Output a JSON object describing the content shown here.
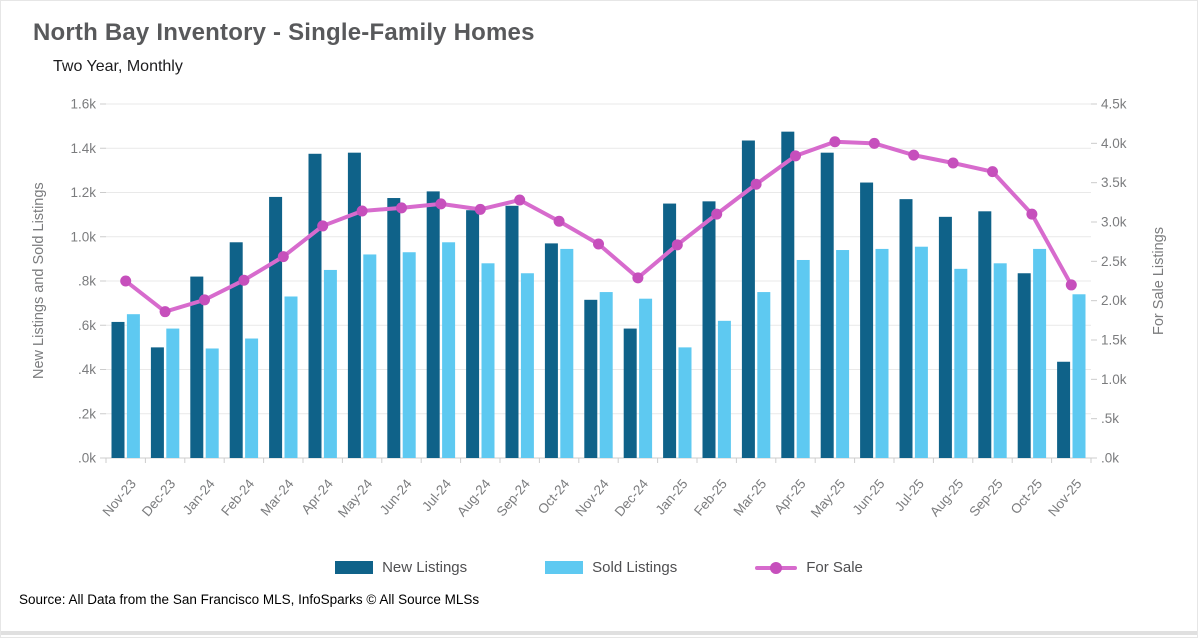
{
  "header": {
    "title": "North Bay Inventory - Single-Family Homes",
    "subtitle": "Two Year, Monthly"
  },
  "footer": {
    "source": "Source: All Data from the San Francisco MLS, InfoSparks © All Source MLSs"
  },
  "legend": {
    "items": [
      {
        "label": "New Listings"
      },
      {
        "label": "Sold Listings"
      },
      {
        "label": "For Sale"
      }
    ]
  },
  "colors": {
    "new_listings": "#0f6289",
    "sold_listings": "#5ec9f1",
    "for_sale_line": "#d76bcd",
    "for_sale_marker": "#c64fbc",
    "grid": "#e9e9e9",
    "axis_line": "#cccccc",
    "axis_text": "#7b7c7e"
  },
  "chart_data": {
    "type": "bar",
    "subtype": "grouped-bars-with-line-overlay",
    "title": "North Bay Inventory - Single-Family Homes",
    "subtitle": "Two Year, Monthly",
    "grid": true,
    "legend_position": "bottom",
    "categories": [
      "Nov-23",
      "Dec-23",
      "Jan-24",
      "Feb-24",
      "Mar-24",
      "Apr-24",
      "May-24",
      "Jun-24",
      "Jul-24",
      "Aug-24",
      "Sep-24",
      "Oct-24",
      "Nov-24",
      "Dec-24",
      "Jan-25",
      "Feb-25",
      "Mar-25",
      "Apr-25",
      "May-25",
      "Jun-25",
      "Jul-25",
      "Aug-25",
      "Sep-25",
      "Oct-25",
      "Nov-25"
    ],
    "series": [
      {
        "name": "New Listings",
        "kind": "bar",
        "axis": "left",
        "color_key": "new_listings",
        "values": [
          615,
          500,
          820,
          975,
          1180,
          1375,
          1380,
          1175,
          1205,
          1120,
          1140,
          970,
          715,
          585,
          1150,
          1160,
          1435,
          1475,
          1380,
          1245,
          1170,
          1090,
          1115,
          835,
          435
        ]
      },
      {
        "name": "Sold Listings",
        "kind": "bar",
        "axis": "left",
        "color_key": "sold_listings",
        "values": [
          650,
          585,
          495,
          540,
          730,
          850,
          920,
          930,
          975,
          880,
          835,
          945,
          750,
          720,
          500,
          620,
          750,
          895,
          940,
          945,
          955,
          855,
          880,
          945,
          740
        ]
      },
      {
        "name": "For Sale",
        "kind": "line",
        "axis": "right",
        "color_key": "for_sale_line",
        "values": [
          2250,
          1860,
          2010,
          2260,
          2560,
          2950,
          3140,
          3180,
          3230,
          3160,
          3280,
          3010,
          2720,
          2290,
          2710,
          3100,
          3480,
          3840,
          4020,
          4000,
          3850,
          3750,
          3640,
          3100,
          2200
        ]
      }
    ],
    "left_axis": {
      "label": "New Listings and Sold Listings",
      "min": 0,
      "max": 1600,
      "step": 200,
      "tick_labels": [
        ".0k",
        ".2k",
        ".4k",
        ".6k",
        ".8k",
        "1.0k",
        "1.2k",
        "1.4k",
        "1.6k"
      ]
    },
    "right_axis": {
      "label": "For Sale Listings",
      "min": 0,
      "max": 4500,
      "step": 500,
      "tick_labels": [
        ".0k",
        ".5k",
        "1.0k",
        "1.5k",
        "2.0k",
        "2.5k",
        "3.0k",
        "3.5k",
        "4.0k",
        "4.5k"
      ]
    }
  }
}
